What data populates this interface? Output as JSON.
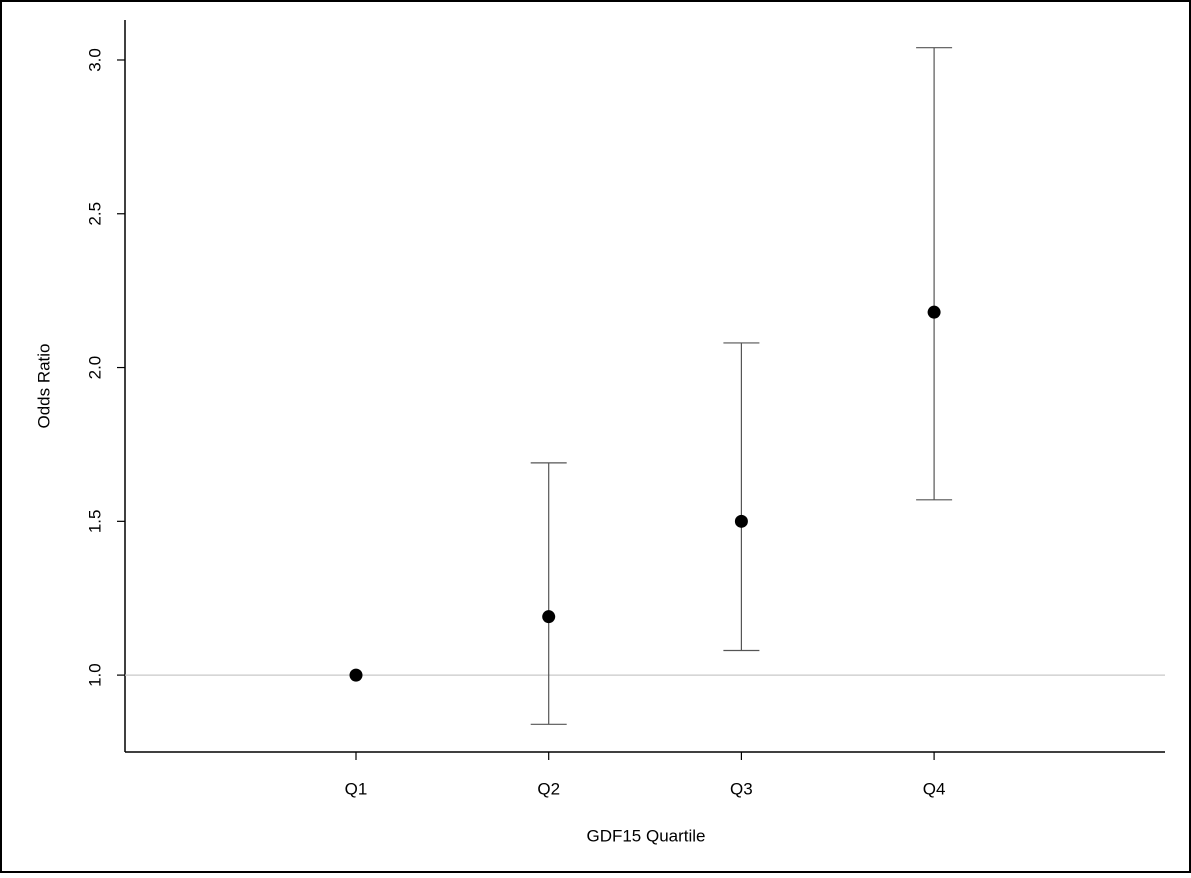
{
  "chart_data": {
    "type": "errorbar",
    "x_label": "GDF15 Quartile",
    "y_label": "Odds Ratio",
    "categories": [
      "Q1",
      "Q2",
      "Q3",
      "Q4"
    ],
    "values": [
      1.0,
      1.19,
      1.5,
      2.18
    ],
    "lower": [
      null,
      0.84,
      1.08,
      1.57
    ],
    "upper": [
      null,
      1.69,
      2.08,
      3.04
    ],
    "color": "#000000",
    "error_color": "#555555",
    "reference_line": 1,
    "ylim": [
      0.75,
      3.13
    ],
    "yticks": [
      {
        "value": 1,
        "label": "1.0"
      },
      1.5,
      {
        "value": 2,
        "label": "2.0"
      },
      2.5,
      {
        "value": 3,
        "label": "3.0"
      }
    ]
  }
}
